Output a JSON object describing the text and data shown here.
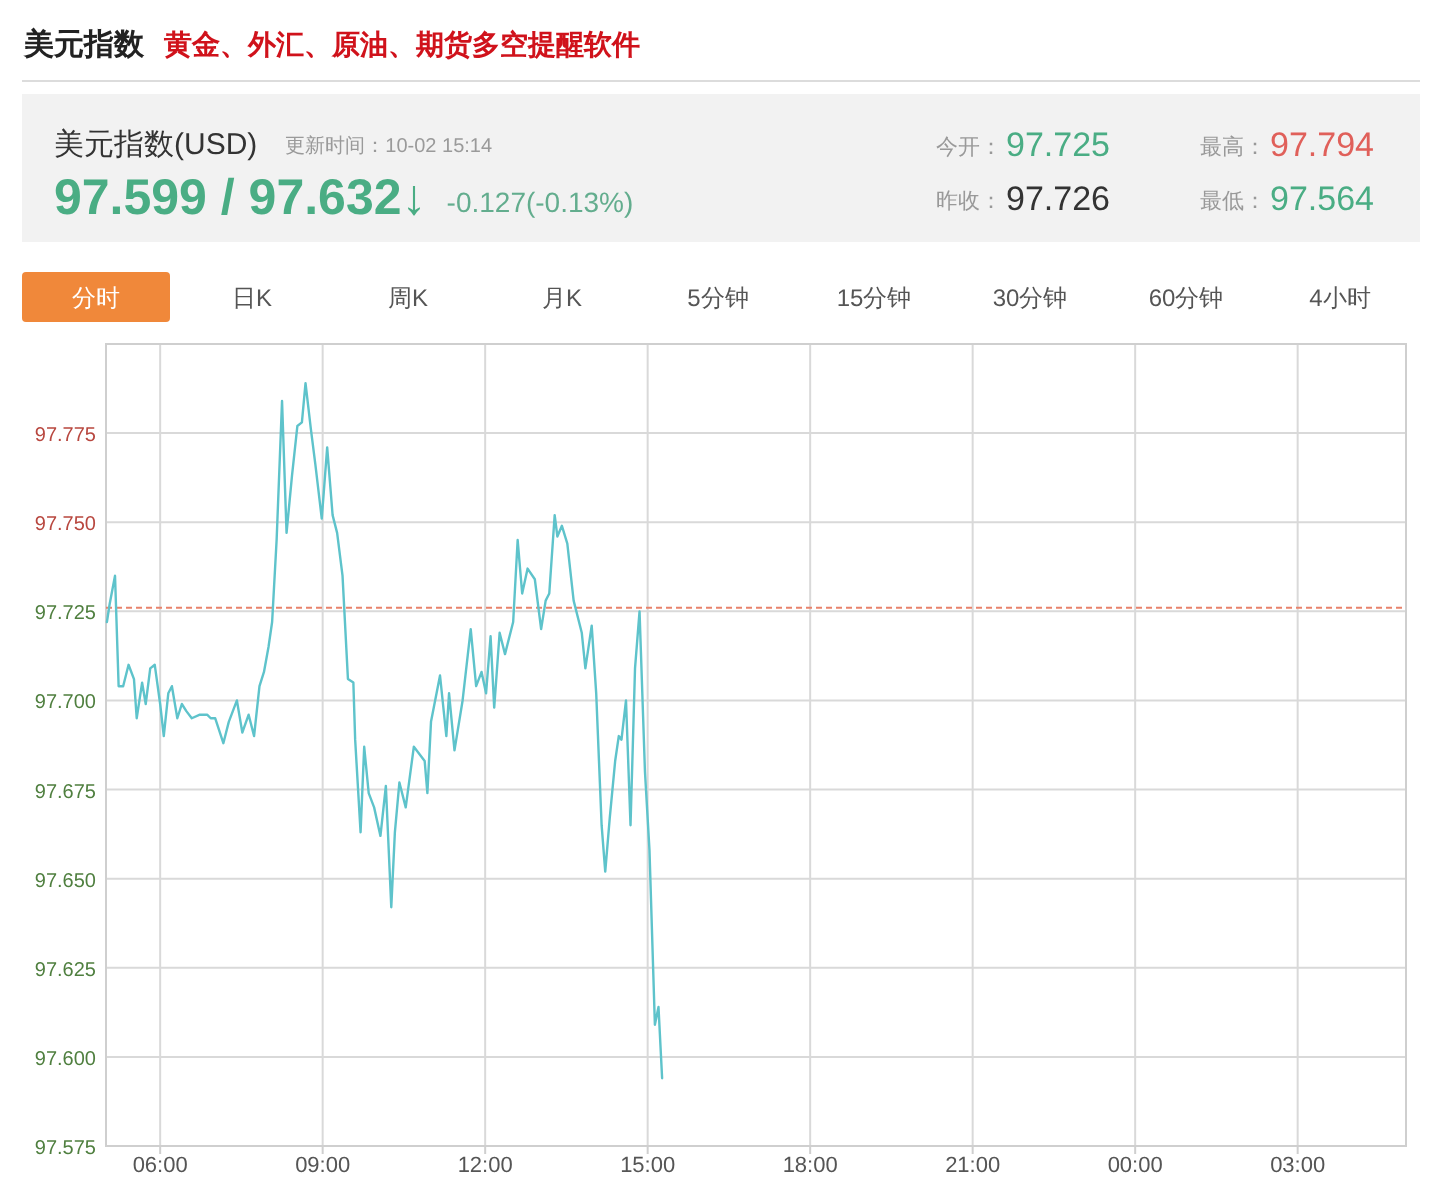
{
  "chart_data": {
    "type": "line",
    "title": "美元指数",
    "subtitle": "黄金、外汇、原油、期货多空提醒软件",
    "annotations": [
      "美元指数(USD)",
      "更新时间：10-02 15:14",
      "97.599 / 97.632↓",
      "-0.127(-0.13%)",
      "今开：",
      "97.725",
      "昨收：",
      "97.726",
      "最高：",
      "97.794",
      "最低：",
      "97.564",
      "分时",
      "日K",
      "周K",
      "月K",
      "5分钟",
      "15分钟",
      "30分钟",
      "60分钟",
      "4小时"
    ],
    "x": [
      "--10-02T05:01",
      "--10-02T05:04",
      "--10-02T05:10",
      "--10-02T05:14",
      "--10-02T05:19",
      "--10-02T05:25",
      "--10-02T05:31",
      "--10-02T05:34",
      "--10-02T05:40",
      "--10-02T05:44",
      "--10-02T05:49",
      "--10-02T05:54",
      "--10-02T06:00",
      "--10-02T06:04",
      "--10-02T06:09",
      "--10-02T06:13",
      "--10-02T06:19",
      "--10-02T06:24",
      "--10-02T06:29",
      "--10-02T06:35",
      "--10-02T06:44",
      "--10-02T06:52",
      "--10-02T06:56",
      "--10-02T07:01",
      "--10-02T07:10",
      "--10-02T07:16",
      "--10-02T07:25",
      "--10-02T07:31",
      "--10-02T07:38",
      "--10-02T07:44",
      "--10-02T07:50",
      "--10-02T07:55",
      "--10-02T08:00",
      "--10-02T08:04",
      "--10-02T08:09",
      "--10-02T08:15",
      "--10-02T08:20",
      "--10-02T08:26",
      "--10-02T08:32",
      "--10-02T08:37",
      "--10-02T08:41",
      "--10-02T08:47",
      "--10-02T08:52",
      "--10-02T08:59",
      "--10-02T09:05",
      "--10-02T09:11",
      "--10-02T09:16",
      "--10-02T09:22",
      "--10-02T09:28",
      "--10-02T09:34",
      "--10-02T09:36",
      "--10-02T09:42",
      "--10-02T09:46",
      "--10-02T09:51",
      "--10-02T09:57",
      "--10-02T10:04",
      "--10-02T10:10",
      "--10-02T10:16",
      "--10-02T10:20",
      "--10-02T10:25",
      "--10-02T10:32",
      "--10-02T10:41",
      "--10-02T10:53",
      "--10-02T10:56",
      "--10-02T11:00",
      "--10-02T11:10",
      "--10-02T11:17",
      "--10-02T11:20",
      "--10-02T11:26",
      "--10-02T11:35",
      "--10-02T11:44",
      "--10-02T11:50",
      "--10-02T11:56",
      "--10-02T12:01",
      "--10-02T12:06",
      "--10-02T12:10",
      "--10-02T12:16",
      "--10-02T12:22",
      "--10-02T12:31",
      "--10-02T12:36",
      "--10-02T12:41",
      "--10-02T12:47",
      "--10-02T12:55",
      "--10-02T13:02",
      "--10-02T13:07",
      "--10-02T13:11",
      "--10-02T13:17",
      "--10-02T13:20",
      "--10-02T13:25",
      "--10-02T13:31",
      "--10-02T13:38",
      "--10-02T13:47",
      "--10-02T13:51",
      "--10-02T13:58",
      "--10-02T14:03",
      "--10-02T14:09",
      "--10-02T14:13",
      "--10-02T14:18",
      "--10-02T14:24",
      "--10-02T14:28",
      "--10-02T14:31",
      "--10-02T14:36",
      "--10-02T14:41",
      "--10-02T14:46",
      "--10-02T14:51",
      "--10-02T14:57",
      "--10-02T15:02",
      "--10-02T15:08",
      "--10-02T15:12",
      "--10-02T15:16"
    ],
    "values": [
      97.722,
      97.727,
      97.735,
      97.704,
      97.704,
      97.71,
      97.706,
      97.695,
      97.705,
      97.699,
      97.709,
      97.71,
      97.699,
      97.69,
      97.702,
      97.704,
      97.695,
      97.699,
      97.697,
      97.695,
      97.696,
      97.696,
      97.695,
      97.695,
      97.688,
      97.694,
      97.7,
      97.691,
      97.696,
      97.69,
      97.704,
      97.708,
      97.715,
      97.722,
      97.745,
      97.784,
      97.747,
      97.763,
      97.777,
      97.778,
      97.789,
      97.776,
      97.766,
      97.751,
      97.771,
      97.752,
      97.747,
      97.735,
      97.706,
      97.705,
      97.689,
      97.663,
      97.687,
      97.674,
      97.67,
      97.662,
      97.676,
      97.642,
      97.663,
      97.677,
      97.67,
      97.687,
      97.683,
      97.674,
      97.694,
      97.707,
      97.69,
      97.702,
      97.686,
      97.7,
      97.72,
      97.704,
      97.708,
      97.702,
      97.718,
      97.698,
      97.719,
      97.713,
      97.722,
      97.745,
      97.73,
      97.737,
      97.734,
      97.72,
      97.728,
      97.73,
      97.752,
      97.746,
      97.749,
      97.744,
      97.728,
      97.719,
      97.709,
      97.721,
      97.702,
      97.665,
      97.652,
      97.667,
      97.683,
      97.69,
      97.689,
      97.7,
      97.665,
      97.709,
      97.725,
      97.68,
      97.658,
      97.609,
      97.614,
      97.594
    ],
    "color": "#5ec3cb",
    "xlim": [
      "--10-02T05:00",
      "--10-03T05:00"
    ],
    "xticks": [
      {
        "value": "--10-02T06:00",
        "label": "06:00"
      },
      {
        "value": "--10-02T09:00",
        "label": "09:00"
      },
      {
        "value": "--10-02T12:00",
        "label": "12:00"
      },
      {
        "value": "--10-02T15:00",
        "label": "15:00"
      },
      {
        "value": "--10-02T18:00",
        "label": "18:00"
      },
      {
        "value": "--10-02T21:00",
        "label": "21:00"
      },
      {
        "value": "--10-03T00:00",
        "label": "00:00"
      },
      {
        "value": "--10-03T03:00",
        "label": "03:00"
      }
    ],
    "ylim": [
      97.575,
      97.8
    ],
    "yticks": [
      {
        "value": 97.575,
        "label": "97.575"
      },
      {
        "value": 97.6,
        "label": "97.600"
      },
      {
        "value": 97.625,
        "label": "97.625"
      },
      {
        "value": 97.65,
        "label": "97.650"
      },
      {
        "value": 97.675,
        "label": "97.675"
      },
      {
        "value": 97.7,
        "label": "97.700"
      },
      {
        "value": 97.725,
        "label": "97.725"
      },
      {
        "value": 97.75,
        "label": "97.750"
      },
      {
        "value": 97.775,
        "label": "97.775"
      }
    ],
    "grid": true,
    "ref_lines": [
      {
        "axis": "y",
        "value": 97.726,
        "color": "#e8836c",
        "line_style": "dashed"
      }
    ]
  }
}
